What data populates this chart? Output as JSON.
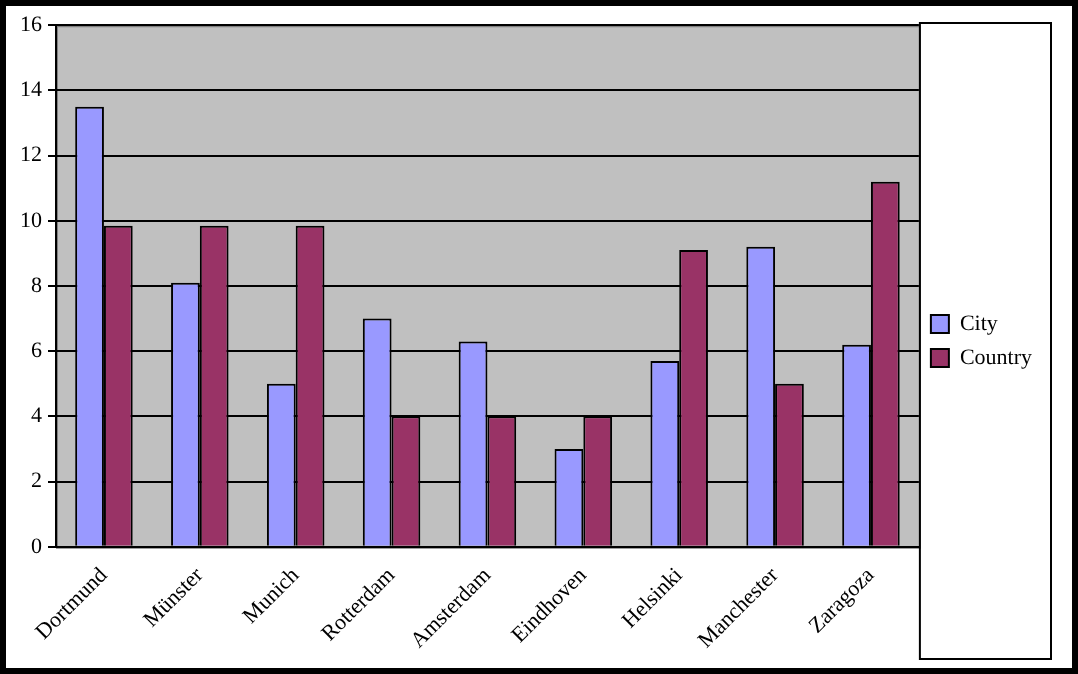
{
  "chart_data": {
    "type": "bar",
    "categories": [
      "Dortmund",
      "Münster",
      "Munich",
      "Rotterdam",
      "Amsterdam",
      "Eindhoven",
      "Helsinki",
      "Manchester",
      "Zaragoza"
    ],
    "series": [
      {
        "name": "City",
        "color": "#9999ff",
        "values": [
          13.5,
          8.1,
          5.0,
          7.0,
          6.3,
          3.0,
          5.7,
          9.2,
          6.2
        ]
      },
      {
        "name": "Country",
        "color": "#993366",
        "values": [
          9.85,
          9.85,
          9.85,
          4.0,
          4.0,
          4.0,
          9.1,
          5.0,
          11.2
        ]
      }
    ],
    "ylim": [
      0,
      16
    ],
    "yticks": [
      0,
      2,
      4,
      6,
      8,
      10,
      12,
      14,
      16
    ],
    "grid": "y",
    "legend": "right"
  }
}
